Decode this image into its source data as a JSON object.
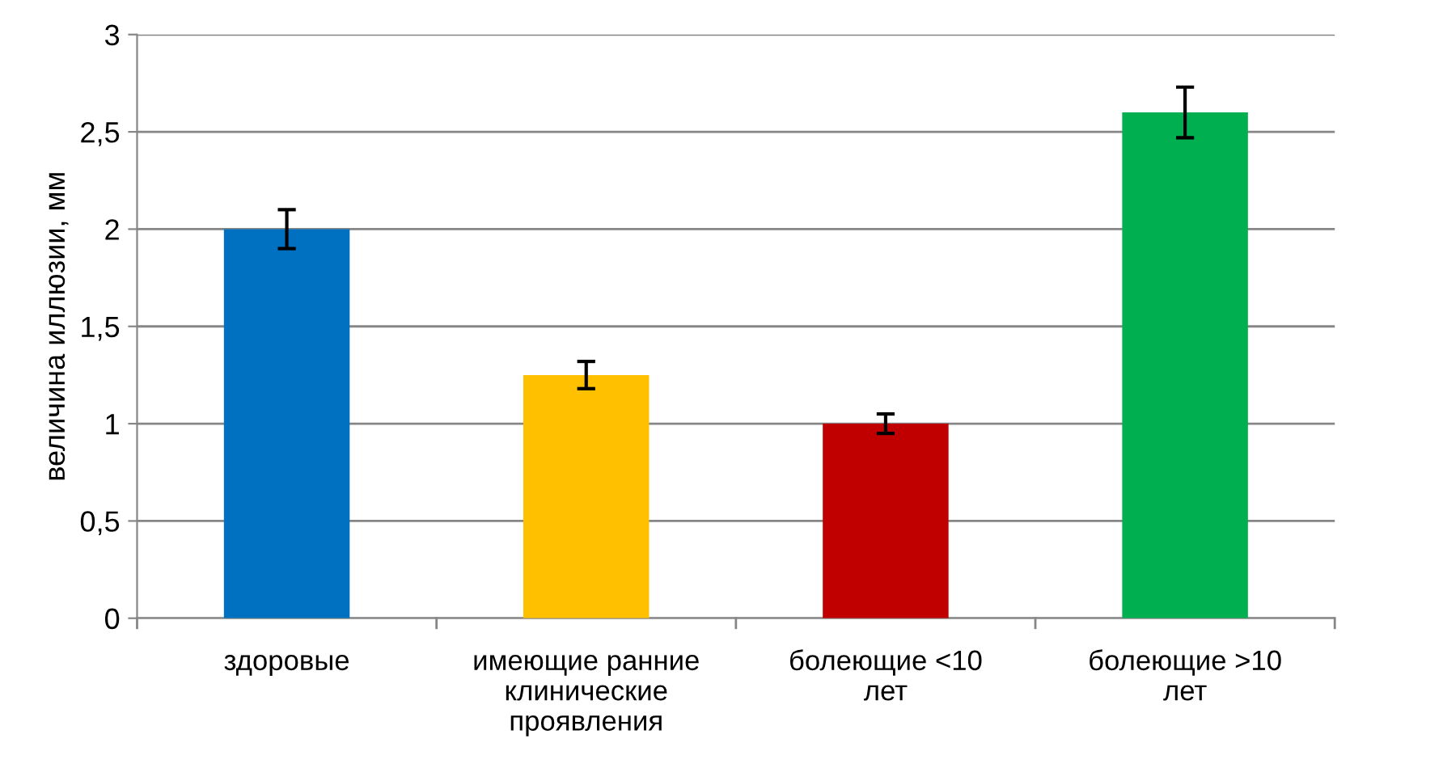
{
  "chart_data": {
    "type": "bar",
    "ylabel": "величина иллюзии, мм",
    "categories": [
      "здоровые",
      "имеющие ранние клинические проявления",
      "болеющие <10 лет",
      "болеющие >10 лет"
    ],
    "values": [
      2.0,
      1.25,
      1.0,
      2.6
    ],
    "colors": [
      "#0070c0",
      "#ffc000",
      "#c00000",
      "#00b050"
    ],
    "errors": [
      0.1,
      0.07,
      0.05,
      0.13
    ],
    "ylim": [
      0,
      3
    ],
    "yticks": [
      0,
      {
        "value": 0.5,
        "label": "0,5"
      },
      1,
      {
        "value": 1.5,
        "label": "1,5"
      },
      2,
      {
        "value": 2.5,
        "label": "2,5"
      },
      3
    ],
    "grid": "y",
    "legend": false
  }
}
